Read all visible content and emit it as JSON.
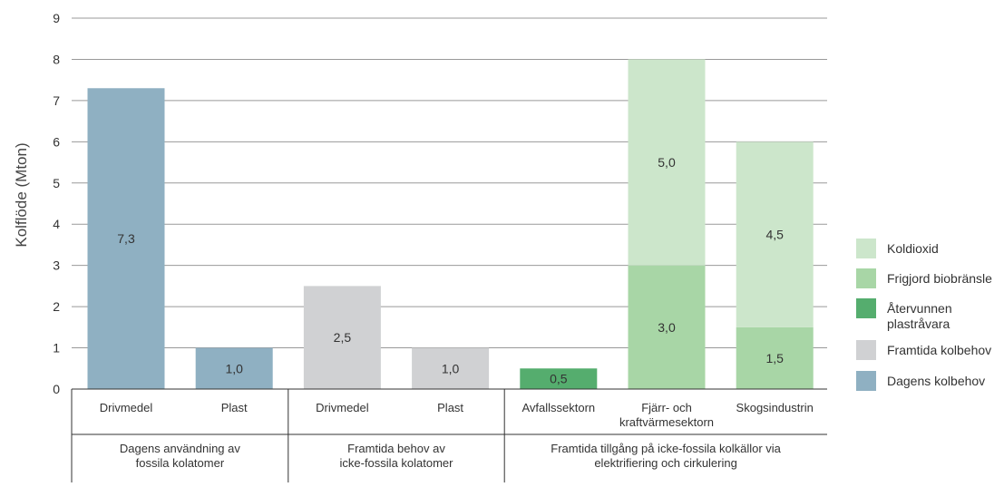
{
  "chart_data": {
    "type": "bar",
    "stacked": true,
    "ylabel": "Kolflöde (Mton)",
    "xlabel": "",
    "ylim": [
      0,
      9
    ],
    "yticks": [
      0,
      1,
      2,
      3,
      4,
      5,
      6,
      7,
      8,
      9
    ],
    "grid": true,
    "legend_position": "right",
    "categories": [
      "Drivmedel",
      "Plast",
      "Drivmedel",
      "Plast",
      "Avfallssektorn",
      "Fjärr- och kraftvärmesektorn",
      "Skogsindustrin"
    ],
    "category_labels": [
      [
        "Drivmedel"
      ],
      [
        "Plast"
      ],
      [
        "Drivmedel"
      ],
      [
        "Plast"
      ],
      [
        "Avfallssektorn"
      ],
      [
        "Fjärr- och",
        "kraftvärmesektorn"
      ],
      [
        "Skogsindustrin"
      ]
    ],
    "groups": [
      {
        "lines": [
          "Dagens användning av",
          "fossila kolatomer"
        ],
        "categories": [
          0,
          1
        ]
      },
      {
        "lines": [
          "Framtida behov av",
          "icke-fossila kolatomer"
        ],
        "categories": [
          2,
          3
        ]
      },
      {
        "lines": [
          "Framtida tillgång på icke-fossila kolkällor via",
          "elektrifiering och cirkulering"
        ],
        "categories": [
          4,
          5,
          6
        ]
      }
    ],
    "series": [
      {
        "name": "Dagens kolbehov",
        "color": "#8fb0c2",
        "values": [
          7.3,
          1.0,
          0,
          0,
          0,
          0,
          0
        ],
        "labels": [
          "7,3",
          "1,0",
          "",
          "",
          "",
          "",
          ""
        ]
      },
      {
        "name": "Framtida kolbehov",
        "color": "#d0d1d3",
        "values": [
          0,
          0,
          2.5,
          1.0,
          0,
          0,
          0
        ],
        "labels": [
          "",
          "",
          "2,5",
          "1,0",
          "",
          "",
          ""
        ]
      },
      {
        "name": "Återvunnen plastråvara",
        "color": "#55ad6e",
        "values": [
          0,
          0,
          0,
          0,
          0.5,
          0,
          0
        ],
        "labels": [
          "",
          "",
          "",
          "",
          "0,5",
          "",
          ""
        ]
      },
      {
        "name": "Frigjord biobränsle",
        "color": "#a8d6a6",
        "values": [
          0,
          0,
          0,
          0,
          0,
          3.0,
          1.5
        ],
        "labels": [
          "",
          "",
          "",
          "",
          "",
          "3,0",
          "1,5"
        ]
      },
      {
        "name": "Koldioxid",
        "color": "#cce6cb",
        "values": [
          0,
          0,
          0,
          0,
          0,
          5.0,
          4.5
        ],
        "labels": [
          "",
          "",
          "",
          "",
          "",
          "5,0",
          "4,5"
        ]
      }
    ],
    "legend": [
      {
        "lines": [
          "Koldioxid"
        ],
        "color": "#cce6cb"
      },
      {
        "lines": [
          "Frigjord biobränsle"
        ],
        "color": "#a8d6a6"
      },
      {
        "lines": [
          "Återvunnen",
          "plastråvara"
        ],
        "color": "#55ad6e"
      },
      {
        "lines": [
          "Framtida kolbehov"
        ],
        "color": "#d0d1d3"
      },
      {
        "lines": [
          "Dagens kolbehov"
        ],
        "color": "#8fb0c2"
      }
    ],
    "gridline_color": "#999999"
  }
}
